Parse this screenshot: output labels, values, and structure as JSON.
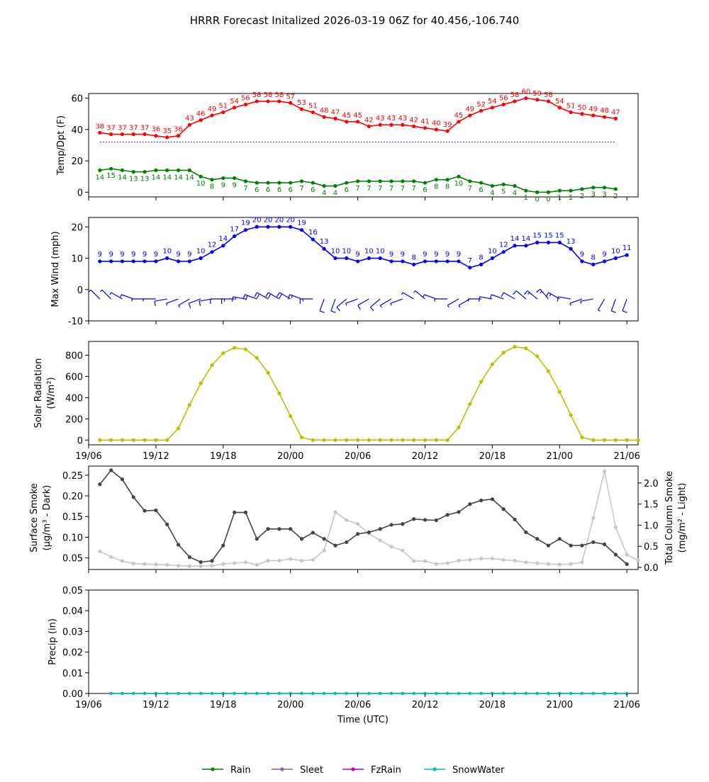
{
  "title": "HRRR Forecast Initalized 2026-03-19 06Z for 40.456,-106.740",
  "x_axis": {
    "label": "Time (UTC)",
    "range_hours": [
      0,
      49
    ],
    "ticks": [
      {
        "h": 0,
        "label": "19/06"
      },
      {
        "h": 6,
        "label": "19/12"
      },
      {
        "h": 12,
        "label": "19/18"
      },
      {
        "h": 18,
        "label": "20/00"
      },
      {
        "h": 24,
        "label": "20/06"
      },
      {
        "h": 30,
        "label": "20/12"
      },
      {
        "h": 36,
        "label": "20/18"
      },
      {
        "h": 42,
        "label": "21/00"
      },
      {
        "h": 48,
        "label": "21/06"
      }
    ]
  },
  "colors": {
    "temp": "#ff0000",
    "dewpoint": "#008000",
    "wind": "#0000ff",
    "solar": "#bfbf00",
    "smoke_surface": "#444444",
    "smoke_column": "#c8c8c8",
    "freezing_line": "#0000ff",
    "rain": "#008000",
    "sleet": "#8064a2",
    "fzrain": "#bf00bf",
    "snowwater": "#00bfbf"
  },
  "chart_data": [
    {
      "id": "temp",
      "type": "line",
      "ylabel": "Temp/Dpt (F)",
      "ylim": [
        -3,
        63
      ],
      "yticks": [
        0,
        20,
        40,
        60
      ],
      "x_start": 1,
      "freezing_line": 32,
      "series": [
        {
          "name": "Temperature",
          "values": [
            38,
            37,
            37,
            37,
            37,
            36,
            35,
            36,
            43,
            46,
            49,
            51,
            54,
            56,
            58,
            58,
            58,
            57,
            53,
            51,
            48,
            47,
            45,
            45,
            42,
            43,
            43,
            43,
            42,
            41,
            40,
            39,
            45,
            49,
            52,
            54,
            56,
            58,
            60,
            59,
            58,
            54,
            51,
            50,
            49,
            48,
            47
          ]
        },
        {
          "name": "Dewpoint",
          "values": [
            14,
            15,
            14,
            13,
            13,
            14,
            14,
            14,
            14,
            10,
            8,
            9,
            9,
            7,
            6,
            6,
            6,
            6,
            7,
            6,
            4,
            4,
            6,
            7,
            7,
            7,
            7,
            7,
            7,
            6,
            8,
            8,
            10,
            7,
            6,
            4,
            5,
            4,
            1,
            0,
            0,
            1,
            1,
            2,
            3,
            3,
            2
          ]
        }
      ]
    },
    {
      "id": "wind",
      "type": "line",
      "ylabel": "Max Wind (mph)",
      "ylim": [
        -10,
        23
      ],
      "yticks": [
        -10,
        0,
        10,
        20
      ],
      "x_start": 1,
      "series": [
        {
          "name": "Max Wind",
          "values": [
            9,
            9,
            9,
            9,
            9,
            9,
            10,
            9,
            9,
            10,
            12,
            14,
            17,
            19,
            20,
            20,
            20,
            20,
            19,
            16,
            13,
            10,
            10,
            9,
            10,
            10,
            9,
            9,
            8,
            9,
            9,
            9,
            9,
            7,
            8,
            10,
            12,
            14,
            14,
            15,
            15,
            15,
            13,
            9,
            8,
            9,
            10,
            11
          ]
        }
      ],
      "barb_dirs_deg": [
        315,
        315,
        300,
        290,
        270,
        270,
        260,
        250,
        240,
        250,
        260,
        270,
        270,
        280,
        290,
        300,
        300,
        300,
        290,
        270,
        200,
        200,
        230,
        250,
        240,
        230,
        240,
        250,
        300,
        310,
        290,
        270,
        240,
        240,
        270,
        280,
        290,
        300,
        310,
        310,
        320,
        300,
        280,
        250,
        260,
        210,
        200,
        200
      ]
    },
    {
      "id": "solar",
      "type": "line",
      "ylabel": "Solar Radiation",
      "ylabel2": "(W/m²)",
      "ylim": [
        -45,
        930
      ],
      "yticks": [
        0,
        200,
        400,
        600,
        800
      ],
      "x_start": 1,
      "series": [
        {
          "name": "Solar Radiation",
          "values": [
            0,
            0,
            0,
            0,
            0,
            0,
            0,
            110,
            330,
            535,
            705,
            820,
            870,
            855,
            775,
            635,
            440,
            225,
            25,
            0,
            0,
            0,
            0,
            0,
            0,
            0,
            0,
            0,
            0,
            0,
            0,
            0,
            120,
            340,
            550,
            715,
            825,
            880,
            865,
            790,
            650,
            455,
            235,
            25,
            0,
            0,
            0,
            0,
            0
          ]
        }
      ]
    },
    {
      "id": "smoke",
      "type": "line",
      "ylabel": "Surface Smoke",
      "ylabel_unit": "(μg/m³ - Dark)",
      "ylabel2": "Total Column Smoke",
      "ylabel2_unit": "(mg/m² - Light)",
      "ylim": [
        0.022,
        0.272
      ],
      "yticks": [
        0.05,
        0.1,
        0.15,
        0.2,
        0.25
      ],
      "ylim2": [
        -0.05,
        2.4
      ],
      "yticks2": [
        0.0,
        0.5,
        1.0,
        1.5,
        2.0
      ],
      "x_start": 1,
      "series": [
        {
          "name": "Surface Smoke",
          "axis": "left",
          "values": [
            0.228,
            0.262,
            0.24,
            0.197,
            0.164,
            0.165,
            0.131,
            0.082,
            0.052,
            0.04,
            0.043,
            0.08,
            0.16,
            0.16,
            0.096,
            0.12,
            0.12,
            0.12,
            0.096,
            0.111,
            0.096,
            0.08,
            0.088,
            0.108,
            0.112,
            0.12,
            0.13,
            0.132,
            0.144,
            0.142,
            0.141,
            0.154,
            0.161,
            0.18,
            0.189,
            0.192,
            0.168,
            0.143,
            0.112,
            0.096,
            0.08,
            0.096,
            0.08,
            0.08,
            0.088,
            0.083,
            0.058,
            0.035
          ]
        },
        {
          "name": "Total Column Smoke",
          "axis": "right",
          "values": [
            0.38,
            0.25,
            0.15,
            0.09,
            0.08,
            0.07,
            0.06,
            0.04,
            0.03,
            0.03,
            0.04,
            0.08,
            0.1,
            0.12,
            0.06,
            0.16,
            0.16,
            0.2,
            0.16,
            0.18,
            0.4,
            1.31,
            1.12,
            1.03,
            0.8,
            0.64,
            0.49,
            0.4,
            0.15,
            0.15,
            0.08,
            0.1,
            0.16,
            0.18,
            0.21,
            0.21,
            0.18,
            0.16,
            0.12,
            0.1,
            0.08,
            0.07,
            0.08,
            0.12,
            1.17,
            2.28,
            0.95,
            0.3,
            0.17
          ]
        }
      ]
    },
    {
      "id": "precip",
      "type": "line",
      "ylabel": "Precip (in)",
      "ylim": [
        0,
        0.05
      ],
      "yticks": [
        0.0,
        0.01,
        0.02,
        0.03,
        0.04,
        0.05
      ],
      "x_start": 2,
      "series": [
        {
          "name": "Rain",
          "values": [
            0,
            0,
            0,
            0,
            0,
            0,
            0,
            0,
            0,
            0,
            0,
            0,
            0,
            0,
            0,
            0,
            0,
            0,
            0,
            0,
            0,
            0,
            0,
            0,
            0,
            0,
            0,
            0,
            0,
            0,
            0,
            0,
            0,
            0,
            0,
            0,
            0,
            0,
            0,
            0,
            0,
            0,
            0,
            0,
            0,
            0,
            0
          ]
        },
        {
          "name": "SnowWater",
          "values": [
            0,
            0,
            0,
            0,
            0,
            0,
            0,
            0,
            0,
            0,
            0,
            0,
            0,
            0,
            0,
            0,
            0,
            0,
            0,
            0,
            0,
            0,
            0,
            0,
            0,
            0,
            0,
            0,
            0,
            0,
            0,
            0,
            0,
            0,
            0,
            0,
            0,
            0,
            0,
            0,
            0,
            0,
            0,
            0,
            0,
            0,
            0
          ]
        }
      ]
    }
  ],
  "legend": [
    {
      "label": "Rain",
      "color_key": "rain"
    },
    {
      "label": "Sleet",
      "color_key": "sleet"
    },
    {
      "label": "FzRain",
      "color_key": "fzrain"
    },
    {
      "label": "SnowWater",
      "color_key": "snowwater"
    }
  ]
}
